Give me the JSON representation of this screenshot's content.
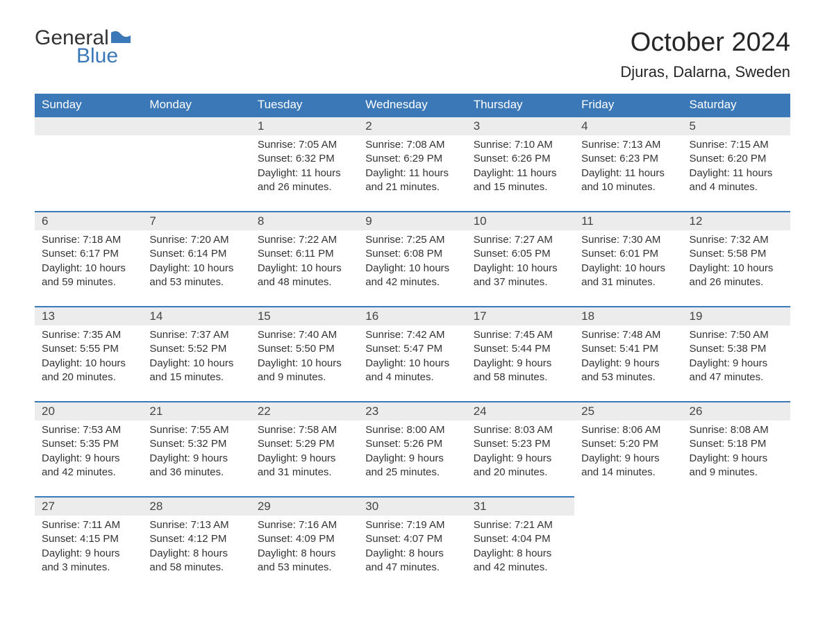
{
  "logo": {
    "text_general": "General",
    "text_blue": "Blue",
    "icon_color": "#3b78b8"
  },
  "title": "October 2024",
  "location": "Djuras, Dalarna, Sweden",
  "colors": {
    "header_bg": "#3b78b8",
    "header_text": "#ffffff",
    "daynum_bg": "#ececec",
    "border_top": "#3b78b8",
    "body_text": "#333333",
    "page_bg": "#ffffff"
  },
  "layout": {
    "columns": 7,
    "rows": 5,
    "cell_font_size_pt": 11,
    "header_font_size_pt": 13,
    "title_font_size_pt": 28
  },
  "weekdays": [
    "Sunday",
    "Monday",
    "Tuesday",
    "Wednesday",
    "Thursday",
    "Friday",
    "Saturday"
  ],
  "weeks": [
    [
      null,
      null,
      {
        "n": "1",
        "sunrise": "Sunrise: 7:05 AM",
        "sunset": "Sunset: 6:32 PM",
        "daylight1": "Daylight: 11 hours",
        "daylight2": "and 26 minutes."
      },
      {
        "n": "2",
        "sunrise": "Sunrise: 7:08 AM",
        "sunset": "Sunset: 6:29 PM",
        "daylight1": "Daylight: 11 hours",
        "daylight2": "and 21 minutes."
      },
      {
        "n": "3",
        "sunrise": "Sunrise: 7:10 AM",
        "sunset": "Sunset: 6:26 PM",
        "daylight1": "Daylight: 11 hours",
        "daylight2": "and 15 minutes."
      },
      {
        "n": "4",
        "sunrise": "Sunrise: 7:13 AM",
        "sunset": "Sunset: 6:23 PM",
        "daylight1": "Daylight: 11 hours",
        "daylight2": "and 10 minutes."
      },
      {
        "n": "5",
        "sunrise": "Sunrise: 7:15 AM",
        "sunset": "Sunset: 6:20 PM",
        "daylight1": "Daylight: 11 hours",
        "daylight2": "and 4 minutes."
      }
    ],
    [
      {
        "n": "6",
        "sunrise": "Sunrise: 7:18 AM",
        "sunset": "Sunset: 6:17 PM",
        "daylight1": "Daylight: 10 hours",
        "daylight2": "and 59 minutes."
      },
      {
        "n": "7",
        "sunrise": "Sunrise: 7:20 AM",
        "sunset": "Sunset: 6:14 PM",
        "daylight1": "Daylight: 10 hours",
        "daylight2": "and 53 minutes."
      },
      {
        "n": "8",
        "sunrise": "Sunrise: 7:22 AM",
        "sunset": "Sunset: 6:11 PM",
        "daylight1": "Daylight: 10 hours",
        "daylight2": "and 48 minutes."
      },
      {
        "n": "9",
        "sunrise": "Sunrise: 7:25 AM",
        "sunset": "Sunset: 6:08 PM",
        "daylight1": "Daylight: 10 hours",
        "daylight2": "and 42 minutes."
      },
      {
        "n": "10",
        "sunrise": "Sunrise: 7:27 AM",
        "sunset": "Sunset: 6:05 PM",
        "daylight1": "Daylight: 10 hours",
        "daylight2": "and 37 minutes."
      },
      {
        "n": "11",
        "sunrise": "Sunrise: 7:30 AM",
        "sunset": "Sunset: 6:01 PM",
        "daylight1": "Daylight: 10 hours",
        "daylight2": "and 31 minutes."
      },
      {
        "n": "12",
        "sunrise": "Sunrise: 7:32 AM",
        "sunset": "Sunset: 5:58 PM",
        "daylight1": "Daylight: 10 hours",
        "daylight2": "and 26 minutes."
      }
    ],
    [
      {
        "n": "13",
        "sunrise": "Sunrise: 7:35 AM",
        "sunset": "Sunset: 5:55 PM",
        "daylight1": "Daylight: 10 hours",
        "daylight2": "and 20 minutes."
      },
      {
        "n": "14",
        "sunrise": "Sunrise: 7:37 AM",
        "sunset": "Sunset: 5:52 PM",
        "daylight1": "Daylight: 10 hours",
        "daylight2": "and 15 minutes."
      },
      {
        "n": "15",
        "sunrise": "Sunrise: 7:40 AM",
        "sunset": "Sunset: 5:50 PM",
        "daylight1": "Daylight: 10 hours",
        "daylight2": "and 9 minutes."
      },
      {
        "n": "16",
        "sunrise": "Sunrise: 7:42 AM",
        "sunset": "Sunset: 5:47 PM",
        "daylight1": "Daylight: 10 hours",
        "daylight2": "and 4 minutes."
      },
      {
        "n": "17",
        "sunrise": "Sunrise: 7:45 AM",
        "sunset": "Sunset: 5:44 PM",
        "daylight1": "Daylight: 9 hours",
        "daylight2": "and 58 minutes."
      },
      {
        "n": "18",
        "sunrise": "Sunrise: 7:48 AM",
        "sunset": "Sunset: 5:41 PM",
        "daylight1": "Daylight: 9 hours",
        "daylight2": "and 53 minutes."
      },
      {
        "n": "19",
        "sunrise": "Sunrise: 7:50 AM",
        "sunset": "Sunset: 5:38 PM",
        "daylight1": "Daylight: 9 hours",
        "daylight2": "and 47 minutes."
      }
    ],
    [
      {
        "n": "20",
        "sunrise": "Sunrise: 7:53 AM",
        "sunset": "Sunset: 5:35 PM",
        "daylight1": "Daylight: 9 hours",
        "daylight2": "and 42 minutes."
      },
      {
        "n": "21",
        "sunrise": "Sunrise: 7:55 AM",
        "sunset": "Sunset: 5:32 PM",
        "daylight1": "Daylight: 9 hours",
        "daylight2": "and 36 minutes."
      },
      {
        "n": "22",
        "sunrise": "Sunrise: 7:58 AM",
        "sunset": "Sunset: 5:29 PM",
        "daylight1": "Daylight: 9 hours",
        "daylight2": "and 31 minutes."
      },
      {
        "n": "23",
        "sunrise": "Sunrise: 8:00 AM",
        "sunset": "Sunset: 5:26 PM",
        "daylight1": "Daylight: 9 hours",
        "daylight2": "and 25 minutes."
      },
      {
        "n": "24",
        "sunrise": "Sunrise: 8:03 AM",
        "sunset": "Sunset: 5:23 PM",
        "daylight1": "Daylight: 9 hours",
        "daylight2": "and 20 minutes."
      },
      {
        "n": "25",
        "sunrise": "Sunrise: 8:06 AM",
        "sunset": "Sunset: 5:20 PM",
        "daylight1": "Daylight: 9 hours",
        "daylight2": "and 14 minutes."
      },
      {
        "n": "26",
        "sunrise": "Sunrise: 8:08 AM",
        "sunset": "Sunset: 5:18 PM",
        "daylight1": "Daylight: 9 hours",
        "daylight2": "and 9 minutes."
      }
    ],
    [
      {
        "n": "27",
        "sunrise": "Sunrise: 7:11 AM",
        "sunset": "Sunset: 4:15 PM",
        "daylight1": "Daylight: 9 hours",
        "daylight2": "and 3 minutes."
      },
      {
        "n": "28",
        "sunrise": "Sunrise: 7:13 AM",
        "sunset": "Sunset: 4:12 PM",
        "daylight1": "Daylight: 8 hours",
        "daylight2": "and 58 minutes."
      },
      {
        "n": "29",
        "sunrise": "Sunrise: 7:16 AM",
        "sunset": "Sunset: 4:09 PM",
        "daylight1": "Daylight: 8 hours",
        "daylight2": "and 53 minutes."
      },
      {
        "n": "30",
        "sunrise": "Sunrise: 7:19 AM",
        "sunset": "Sunset: 4:07 PM",
        "daylight1": "Daylight: 8 hours",
        "daylight2": "and 47 minutes."
      },
      {
        "n": "31",
        "sunrise": "Sunrise: 7:21 AM",
        "sunset": "Sunset: 4:04 PM",
        "daylight1": "Daylight: 8 hours",
        "daylight2": "and 42 minutes."
      },
      null,
      null
    ]
  ]
}
